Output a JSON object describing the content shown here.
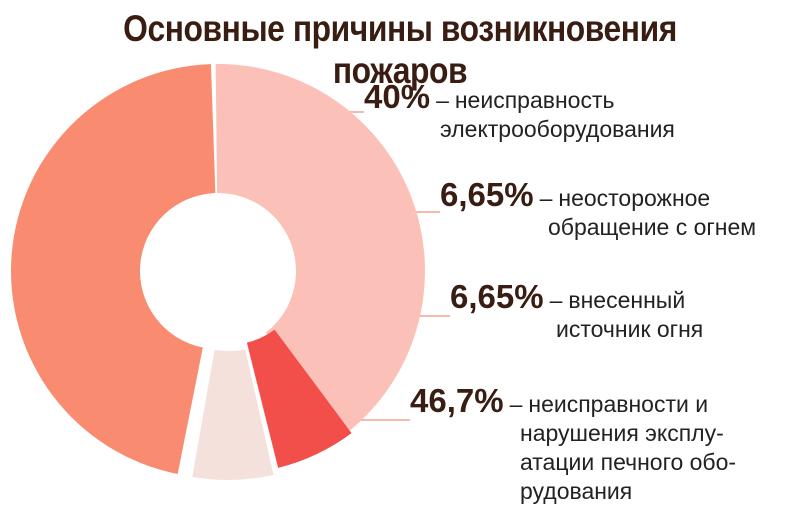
{
  "chart_data": {
    "type": "pie",
    "title": "Основные причины возникновения пожаров",
    "slices": [
      {
        "value": 40,
        "value_label": "40%",
        "label_lines": [
          "неисправность",
          "электрооборудования"
        ],
        "color": "#fbc1b8"
      },
      {
        "value": 6.65,
        "value_label": "6,65%",
        "label_lines": [
          "неосторожное",
          "обращение с огнем"
        ],
        "color": "#f24e4a"
      },
      {
        "value": 6.65,
        "value_label": "6,65%",
        "label_lines": [
          "внесенный",
          "источник огня"
        ],
        "color": "#f5e1dc"
      },
      {
        "value": 46.7,
        "value_label": "46,7%",
        "label_lines": [
          "неисправности и",
          "нарушения эксплу-",
          "атации печного обо-",
          "рудования"
        ],
        "color": "#f98c70"
      }
    ],
    "dash": "–",
    "leader_color": "#f0a090"
  }
}
